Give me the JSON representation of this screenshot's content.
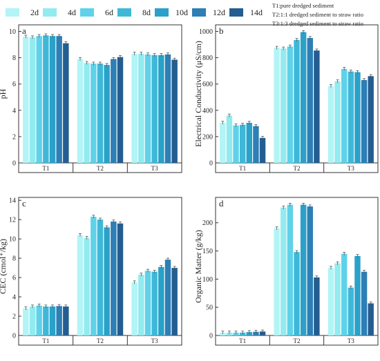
{
  "legend": {
    "days": [
      "2d",
      "4d",
      "6d",
      "8d",
      "10d",
      "12d",
      "14d"
    ],
    "colors": [
      "#b3f4f6",
      "#92ebef",
      "#5fd2ea",
      "#3fb8d8",
      "#2aa1c9",
      "#2d7fb5",
      "#245d91"
    ],
    "notes": [
      "T1:pure dredged sediment",
      "T2:1:1 dredged sediment to straw ratio",
      "T3:1:3 dredged sediment to straw ratio"
    ]
  },
  "chart_data": [
    {
      "type": "bar",
      "panel_label": "a",
      "ylabel": "pH",
      "categories": [
        "T1",
        "T2",
        "T3"
      ],
      "ylim": [
        0,
        10.5
      ],
      "yticks": [
        0,
        2,
        4,
        6,
        8,
        10
      ],
      "series": [
        {
          "name": "2d",
          "values": [
            9.6,
            7.9,
            8.3
          ]
        },
        {
          "name": "4d",
          "values": [
            9.55,
            7.6,
            8.3
          ]
        },
        {
          "name": "6d",
          "values": [
            9.65,
            7.55,
            8.25
          ]
        },
        {
          "name": "8d",
          "values": [
            9.7,
            7.55,
            8.2
          ]
        },
        {
          "name": "10d",
          "values": [
            9.65,
            7.45,
            8.2
          ]
        },
        {
          "name": "12d",
          "values": [
            9.65,
            7.9,
            8.25
          ]
        },
        {
          "name": "14d",
          "values": [
            9.1,
            8.05,
            7.85
          ]
        }
      ]
    },
    {
      "type": "bar",
      "panel_label": "b",
      "ylabel": "Electrical Conductivity (μS/cm)",
      "categories": [
        "T1",
        "T2",
        "T3"
      ],
      "ylim": [
        0,
        1050
      ],
      "yticks": [
        0,
        200,
        400,
        600,
        800,
        1000
      ],
      "series": [
        {
          "name": "2d",
          "values": [
            305,
            875,
            585
          ]
        },
        {
          "name": "4d",
          "values": [
            360,
            870,
            620
          ]
        },
        {
          "name": "6d",
          "values": [
            285,
            885,
            715
          ]
        },
        {
          "name": "8d",
          "values": [
            290,
            935,
            695
          ]
        },
        {
          "name": "10d",
          "values": [
            305,
            995,
            690
          ]
        },
        {
          "name": "12d",
          "values": [
            280,
            950,
            630
          ]
        },
        {
          "name": "14d",
          "values": [
            190,
            855,
            660
          ]
        }
      ]
    },
    {
      "type": "bar",
      "panel_label": "c",
      "ylabel": "CEC (cmol⁺/kg)",
      "categories": [
        "T1",
        "T2",
        "T3"
      ],
      "ylim": [
        0,
        14.3
      ],
      "yticks": [
        0,
        2,
        4,
        6,
        8,
        10,
        12,
        14
      ],
      "series": [
        {
          "name": "2d",
          "values": [
            2.8,
            10.4,
            5.5
          ]
        },
        {
          "name": "4d",
          "values": [
            3.0,
            10.1,
            6.3
          ]
        },
        {
          "name": "6d",
          "values": [
            3.1,
            12.3,
            6.7
          ]
        },
        {
          "name": "8d",
          "values": [
            3.0,
            12.0,
            6.6
          ]
        },
        {
          "name": "10d",
          "values": [
            3.0,
            11.2,
            7.1
          ]
        },
        {
          "name": "12d",
          "values": [
            3.05,
            11.8,
            7.85
          ]
        },
        {
          "name": "14d",
          "values": [
            3.0,
            11.6,
            7.0
          ]
        }
      ]
    },
    {
      "type": "bar",
      "panel_label": "d",
      "ylabel": "Organic Matter (g/kg)",
      "categories": [
        "T1",
        "T2",
        "T3"
      ],
      "ylim": [
        0,
        245
      ],
      "yticks": [
        0,
        50,
        100,
        150,
        200
      ],
      "series": [
        {
          "name": "2d",
          "values": [
            5,
            190,
            120
          ]
        },
        {
          "name": "4d",
          "values": [
            5,
            227,
            128
          ]
        },
        {
          "name": "6d",
          "values": [
            5,
            232,
            145
          ]
        },
        {
          "name": "8d",
          "values": [
            5,
            148,
            85
          ]
        },
        {
          "name": "10d",
          "values": [
            6,
            232,
            141
          ]
        },
        {
          "name": "12d",
          "values": [
            6.5,
            229,
            113
          ]
        },
        {
          "name": "14d",
          "values": [
            7,
            103,
            57
          ]
        }
      ]
    }
  ]
}
